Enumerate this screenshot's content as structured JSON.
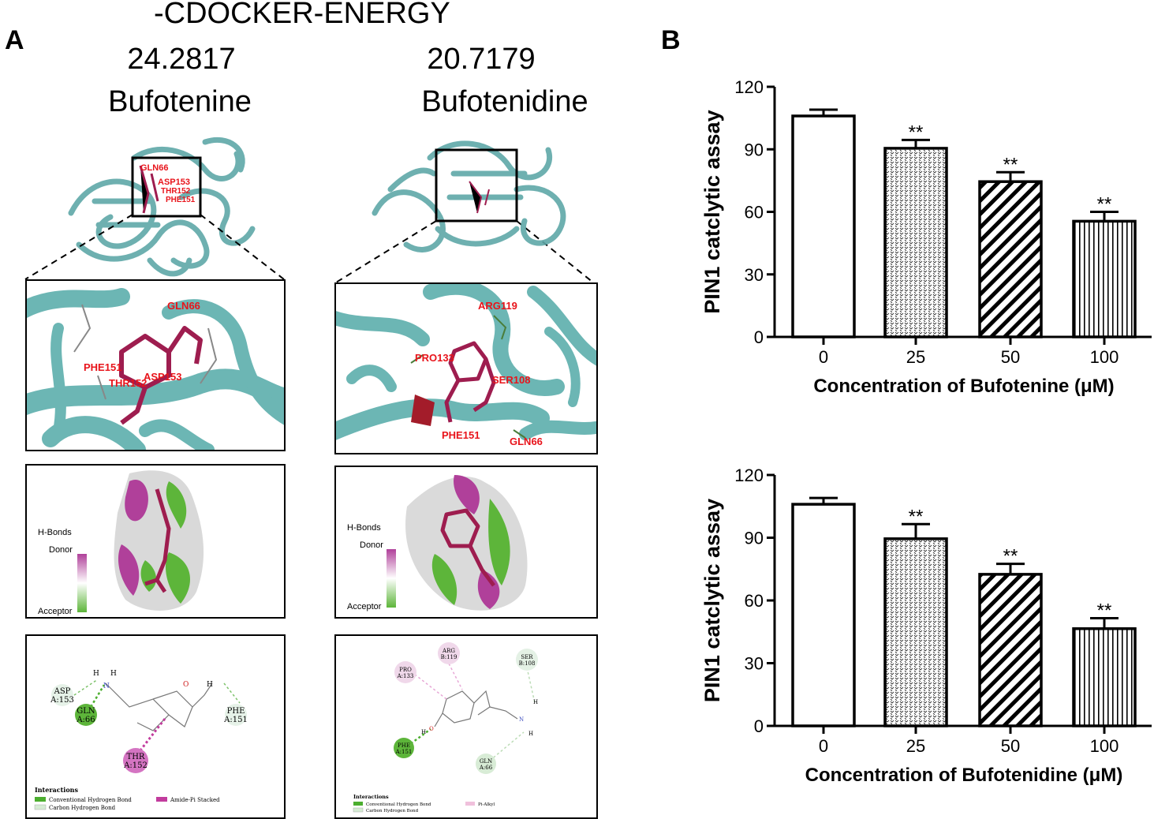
{
  "panel_a": {
    "letter": "A",
    "title": "-CDOCKER-ENERGY",
    "left": {
      "score": "24.2817",
      "name": "Bufotenine",
      "overview_labels": [
        "GLN66",
        "ASP153",
        "THR152",
        "PHE151"
      ],
      "zoom_labels": [
        "GLN66",
        "PHE151",
        "ASP153",
        "THR152"
      ],
      "hbond_legend": {
        "title": "H-Bonds",
        "donor": "Donor",
        "acceptor": "Acceptor"
      },
      "residues": [
        {
          "id": "asp",
          "line1": "ASP",
          "line2": "A:153"
        },
        {
          "id": "gln",
          "line1": "GLN",
          "line2": "A:66"
        },
        {
          "id": "phe",
          "line1": "PHE",
          "line2": "A:151"
        },
        {
          "id": "thr",
          "line1": "THR",
          "line2": "A:152"
        }
      ],
      "atoms": {
        "h": "H",
        "n": "N",
        "o": "O"
      },
      "interactions": {
        "title": "Interactions",
        "items": [
          "Conventional Hydrogen Bond",
          "Carbon Hydrogen Bond",
          "Amide-Pi Stacked"
        ]
      }
    },
    "right": {
      "score": "20.7179",
      "name": "Bufotenidine",
      "zoom_labels": [
        "ARG119",
        "PRO133",
        "SER108",
        "PHE151",
        "GLN66"
      ],
      "hbond_legend": {
        "title": "H-Bonds",
        "donor": "Donor",
        "acceptor": "Acceptor"
      },
      "residues": [
        {
          "id": "arg",
          "line1": "ARG",
          "line2": "B:119"
        },
        {
          "id": "pro",
          "line1": "PRO",
          "line2": "A:133"
        },
        {
          "id": "ser",
          "line1": "SER",
          "line2": "B:108"
        },
        {
          "id": "phe",
          "line1": "PHE",
          "line2": "A:151"
        },
        {
          "id": "gln",
          "line1": "GLN",
          "line2": "A:66"
        }
      ],
      "atoms": {
        "h": "H",
        "n": "N",
        "o": "O"
      },
      "interactions": {
        "title": "Interactions",
        "items": [
          "Conventional Hydrogen Bond",
          "Carbon Hydrogen Bond",
          "Pi-Alkyl"
        ]
      }
    }
  },
  "panel_b": {
    "letter": "B",
    "sig": "**"
  },
  "chart_data": [
    {
      "type": "bar",
      "categories": [
        "0",
        "25",
        "50",
        "100"
      ],
      "values": [
        106,
        90.5,
        74.5,
        55.5
      ],
      "errors": [
        3,
        4,
        4.5,
        4.5
      ],
      "significance": [
        "",
        "**",
        "**",
        "**"
      ],
      "fills": [
        "blank",
        "dots",
        "diagonal",
        "vertical"
      ],
      "ylabel": "PIN1 catclytic assay",
      "xlabel": "Concentration of Bufotenine (μM)",
      "ylim": [
        0,
        120
      ],
      "yticks": [
        0,
        30,
        60,
        90,
        120
      ]
    },
    {
      "type": "bar",
      "categories": [
        "0",
        "25",
        "50",
        "100"
      ],
      "values": [
        106,
        89.5,
        72.5,
        46.5
      ],
      "errors": [
        3,
        7,
        5,
        5
      ],
      "significance": [
        "",
        "**",
        "**",
        "**"
      ],
      "fills": [
        "blank",
        "dots",
        "diagonal",
        "vertical"
      ],
      "ylabel": "PIN1  catclytic assay",
      "xlabel": "Concentration of Bufotenidine (μM)",
      "ylim": [
        0,
        120
      ],
      "yticks": [
        0,
        30,
        60,
        90,
        120
      ]
    }
  ]
}
